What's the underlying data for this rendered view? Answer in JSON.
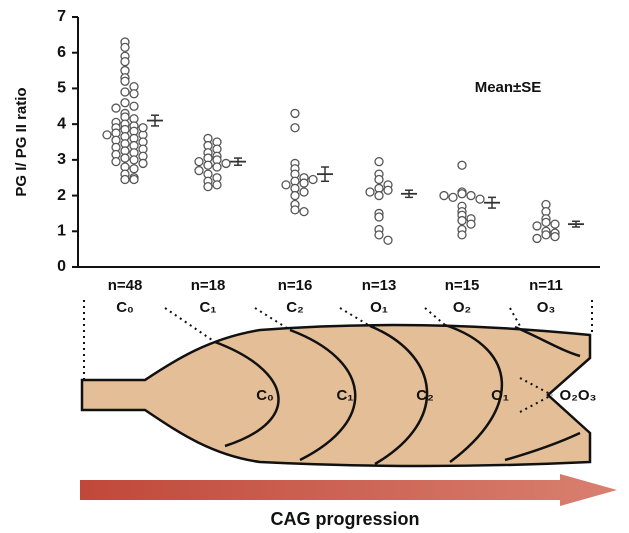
{
  "chart_data": {
    "type": "dotplot",
    "y_label": "PG I/ PG II ratio",
    "annotation": "Mean±SE",
    "ylim": [
      0,
      7
    ],
    "yticks": [
      0,
      1,
      2,
      3,
      4,
      5,
      6,
      7
    ],
    "point_color": "#555555",
    "mean_color": "#333333",
    "groups": [
      {
        "label": "n=48",
        "stage": "C₀",
        "mean": 4.1,
        "se": 0.15,
        "points": [
          6.3,
          6.15,
          5.9,
          5.75,
          5.5,
          5.3,
          5.2,
          5.05,
          4.9,
          4.85,
          4.6,
          4.5,
          4.45,
          4.3,
          4.2,
          4.15,
          4.05,
          4.0,
          3.95,
          3.9,
          3.85,
          3.8,
          3.75,
          3.7,
          3.65,
          3.6,
          3.55,
          3.5,
          3.45,
          3.4,
          3.35,
          3.3,
          3.25,
          3.2,
          3.15,
          3.1,
          3.05,
          3.0,
          2.95,
          2.9,
          2.8,
          2.75,
          2.6,
          2.5,
          2.45,
          2.45,
          3.7,
          3.9
        ]
      },
      {
        "label": "n=18",
        "stage": "C₁",
        "mean": 2.95,
        "se": 0.1,
        "points": [
          3.6,
          3.5,
          3.4,
          3.3,
          3.2,
          3.1,
          3.05,
          3.0,
          2.95,
          2.9,
          2.85,
          2.8,
          2.7,
          2.6,
          2.5,
          2.4,
          2.3,
          2.25
        ]
      },
      {
        "label": "n=16",
        "stage": "C₂",
        "mean": 2.6,
        "se": 0.2,
        "points": [
          4.3,
          3.9,
          2.9,
          2.75,
          2.6,
          2.5,
          2.4,
          2.35,
          2.3,
          2.2,
          2.1,
          2.0,
          1.75,
          1.6,
          1.55,
          2.45
        ]
      },
      {
        "label": "n=13",
        "stage": "O₁",
        "mean": 2.05,
        "se": 0.1,
        "points": [
          2.95,
          2.6,
          2.45,
          2.3,
          2.2,
          2.15,
          2.1,
          2.0,
          1.5,
          1.4,
          1.05,
          0.9,
          0.75
        ]
      },
      {
        "label": "n=15",
        "stage": "O₂",
        "mean": 1.8,
        "se": 0.15,
        "points": [
          2.85,
          2.1,
          2.05,
          2.0,
          1.95,
          1.9,
          1.7,
          1.55,
          1.45,
          1.35,
          1.3,
          1.2,
          1.05,
          0.9,
          2.0
        ]
      },
      {
        "label": "n=11",
        "stage": "O₃",
        "mean": 1.2,
        "se": 0.08,
        "points": [
          1.75,
          1.55,
          1.35,
          1.25,
          1.2,
          1.15,
          1.0,
          0.95,
          0.9,
          0.85,
          0.8
        ]
      }
    ]
  },
  "diagram": {
    "labels": [
      "C₀",
      "C₁",
      "C₂",
      "O₁",
      "O₂O₃"
    ],
    "arrow_label": "CAG progression"
  }
}
